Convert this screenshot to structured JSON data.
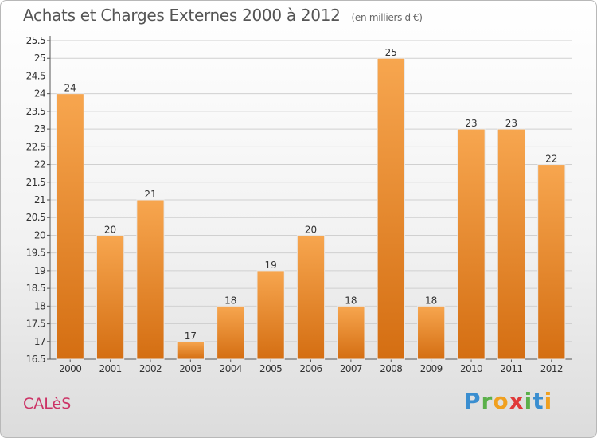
{
  "header": {
    "title": "Achats et Charges Externes 2000 à 2012",
    "unit": "(en milliers d'€)"
  },
  "footer": {
    "commune": "CALèS",
    "brand_letters": [
      "P",
      "r",
      "o",
      "x",
      "i",
      "t",
      "i"
    ]
  },
  "colors": {
    "bar_top": "#f7a64f",
    "bar_bottom": "#d46e12",
    "grid": "#d0d0d0",
    "axis": "#555555",
    "commune": "#cc3366"
  },
  "chart_data": {
    "type": "bar",
    "title": "Achats et Charges Externes 2000 à 2012",
    "subtitle": "(en milliers d'€)",
    "xlabel": "",
    "ylabel": "",
    "categories": [
      "2000",
      "2001",
      "2002",
      "2003",
      "2004",
      "2005",
      "2006",
      "2007",
      "2008",
      "2009",
      "2010",
      "2011",
      "2012"
    ],
    "values": [
      24,
      20,
      21,
      17,
      18,
      19,
      20,
      18,
      25,
      18,
      23,
      23,
      22
    ],
    "ylim": [
      16.5,
      25.5
    ],
    "yticks": [
      "16.5",
      "17",
      "17.5",
      "18",
      "18.5",
      "19",
      "19.5",
      "20",
      "20.5",
      "21",
      "21.5",
      "22",
      "22.5",
      "23",
      "23.5",
      "24",
      "24.5",
      "25",
      "25.5"
    ],
    "grid": true,
    "legend": "none"
  }
}
